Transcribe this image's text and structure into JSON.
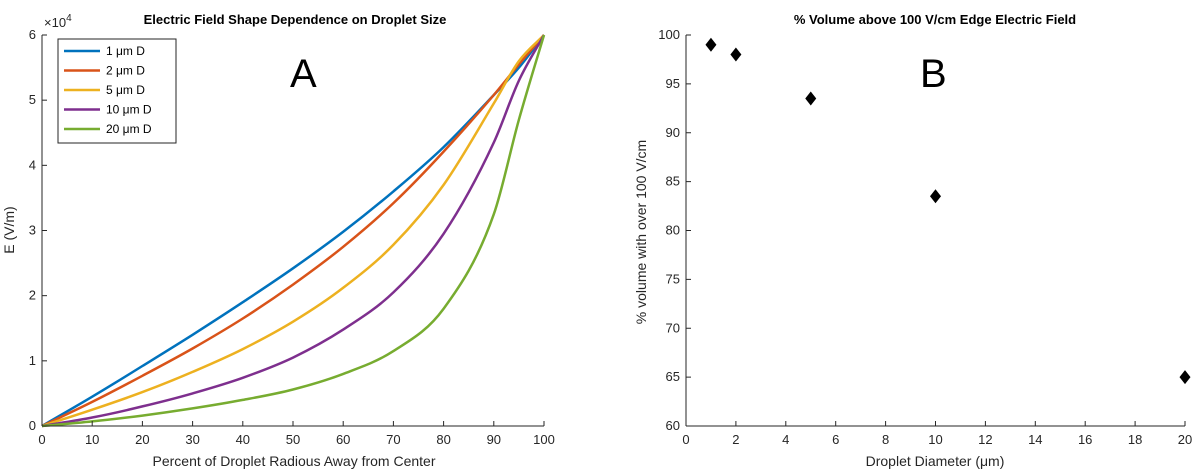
{
  "chart_data": [
    {
      "type": "line",
      "title": "Electric Field Shape Dependence on Droplet Size",
      "panel_label": "A",
      "xlabel": "Percent of Droplet Radious Away from Center",
      "ylabel": "E (V/m)",
      "y_multiplier_label": "×10",
      "y_multiplier_exp": "4",
      "xlim": [
        0,
        100
      ],
      "ylim": [
        0,
        6
      ],
      "xticks": [
        "0",
        "10",
        "20",
        "30",
        "40",
        "50",
        "60",
        "70",
        "80",
        "90",
        "100"
      ],
      "yticks": [
        "0",
        "1",
        "2",
        "3",
        "4",
        "5",
        "6"
      ],
      "legend_position": "top-left",
      "x": [
        0,
        10,
        20,
        30,
        40,
        50,
        60,
        70,
        80,
        90,
        95,
        100
      ],
      "series": [
        {
          "name": "1 μm D",
          "color": "#0072BD",
          "values": [
            0,
            0.45,
            0.92,
            1.4,
            1.9,
            2.42,
            2.98,
            3.6,
            4.28,
            5.08,
            5.5,
            6.0
          ]
        },
        {
          "name": "2 μm D",
          "color": "#D95319",
          "values": [
            0,
            0.37,
            0.77,
            1.19,
            1.65,
            2.17,
            2.75,
            3.42,
            4.21,
            5.08,
            5.55,
            6.0
          ]
        },
        {
          "name": "5 μm D",
          "color": "#EDB120",
          "values": [
            0,
            0.25,
            0.52,
            0.83,
            1.18,
            1.6,
            2.12,
            2.78,
            3.7,
            4.95,
            5.6,
            6.0
          ]
        },
        {
          "name": "10 μm D",
          "color": "#7E2F8E",
          "values": [
            0,
            0.13,
            0.3,
            0.5,
            0.74,
            1.05,
            1.48,
            2.05,
            2.95,
            4.35,
            5.3,
            6.0
          ]
        },
        {
          "name": "20 μm D",
          "color": "#77AC30",
          "values": [
            0,
            0.07,
            0.16,
            0.27,
            0.4,
            0.56,
            0.8,
            1.15,
            1.8,
            3.25,
            4.7,
            6.0
          ]
        }
      ]
    },
    {
      "type": "scatter",
      "title": "% Volume above 100 V/cm Edge Electric Field",
      "panel_label": "B",
      "xlabel": "Droplet Diameter (μm)",
      "ylabel": "% volume with over 100 V/cm",
      "xlim": [
        0,
        20
      ],
      "ylim": [
        60,
        100
      ],
      "xticks": [
        "0",
        "2",
        "4",
        "6",
        "8",
        "10",
        "12",
        "14",
        "16",
        "18",
        "20"
      ],
      "yticks": [
        "60",
        "65",
        "70",
        "75",
        "80",
        "85",
        "90",
        "95",
        "100"
      ],
      "marker": "diamond",
      "x": [
        1,
        2,
        5,
        10,
        20
      ],
      "y": [
        99.0,
        98.0,
        93.5,
        83.5,
        65.0
      ]
    }
  ]
}
